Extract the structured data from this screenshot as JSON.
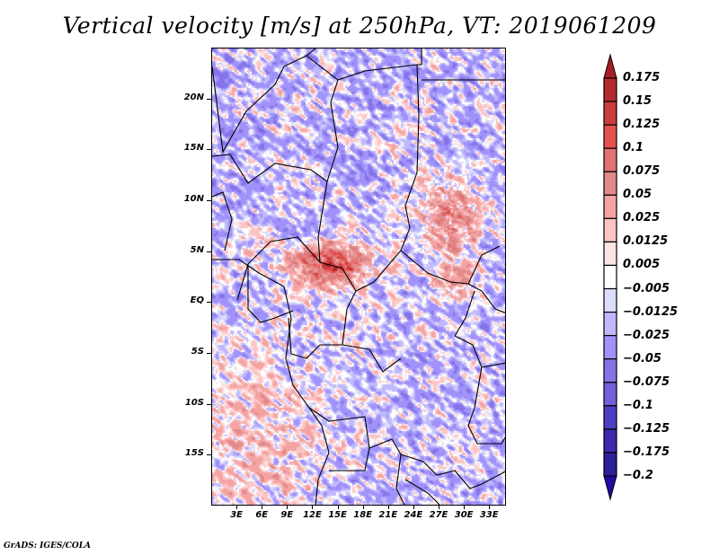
{
  "chart_data": {
    "type": "heatmap",
    "title": "Vertical velocity [m/s] at 250hPa, VT: 2019061209",
    "variable": "Vertical velocity",
    "units": "m/s",
    "level": "250hPa",
    "valid_time": "2019061209",
    "xlabel": "",
    "ylabel": "",
    "x_ticks": [
      "3E",
      "6E",
      "9E",
      "12E",
      "15E",
      "18E",
      "21E",
      "24E",
      "27E",
      "30E",
      "33E"
    ],
    "x_tick_values": [
      3,
      6,
      9,
      12,
      15,
      18,
      21,
      24,
      27,
      30,
      33
    ],
    "y_ticks": [
      "20N",
      "15N",
      "10N",
      "5N",
      "EQ",
      "5S",
      "10S",
      "15S"
    ],
    "y_tick_values": [
      20,
      15,
      10,
      5,
      0,
      -5,
      -10,
      -15
    ],
    "xlim": [
      0,
      35
    ],
    "ylim": [
      -20,
      25
    ],
    "grid": false,
    "legend": "right",
    "colorbar": {
      "labels": [
        "0.175",
        "0.15",
        "0.125",
        "0.1",
        "0.075",
        "0.05",
        "0.025",
        "0.0125",
        "0.005",
        "−0.005",
        "−0.0125",
        "−0.025",
        "−0.05",
        "−0.075",
        "−0.1",
        "−0.125",
        "−0.175",
        "−0.2"
      ],
      "levels": [
        0.175,
        0.15,
        0.125,
        0.1,
        0.075,
        0.05,
        0.025,
        0.0125,
        0.005,
        -0.005,
        -0.0125,
        -0.025,
        -0.05,
        -0.075,
        -0.1,
        -0.125,
        -0.175,
        -0.2
      ],
      "colors": [
        "#a51e22",
        "#b52a2c",
        "#cc3d3d",
        "#e55050",
        "#e37272",
        "#e08a8a",
        "#f4a3a3",
        "#fcc5c5",
        "#fde4e4",
        "#ffffff",
        "#dcdcfc",
        "#c0b8fc",
        "#a092fa",
        "#8574e8",
        "#7160da",
        "#4c3fc6",
        "#3b2aae",
        "#2e2098",
        "#22099f"
      ],
      "extend": "both"
    },
    "description": "Filled contour field over Central Africa; positive (red, ascent) maxima near 5-8N 12-18E and 5-10N 27-31E; broadly negative (blue) elsewhere; pink band offshore southwest Atlantic."
  },
  "footer": {
    "credit": "GrADS: IGES/COLA"
  }
}
